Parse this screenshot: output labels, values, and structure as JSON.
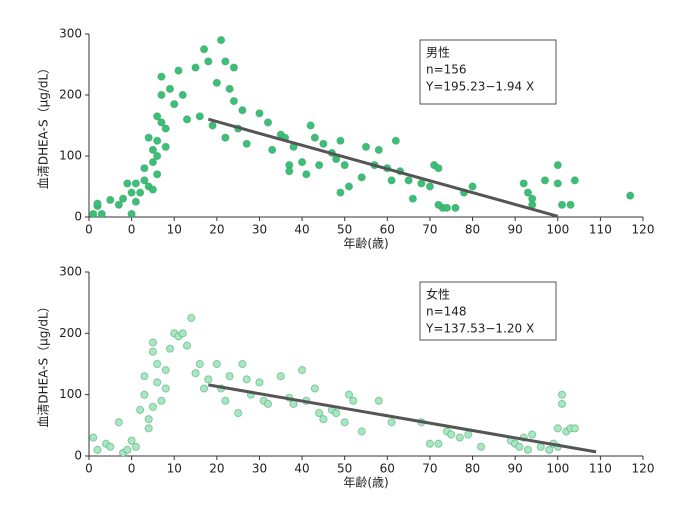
{
  "chart_data": [
    {
      "type": "scatter",
      "ylabel": "血清DHEA-S（μg/dL）",
      "xlabel": "年齢(歳)",
      "annotations": [
        "男性",
        "n=156",
        "Y=195.23−1.94 X"
      ],
      "xlim": [
        -10,
        120
      ],
      "ylim": [
        0,
        300
      ],
      "xticks": [
        {
          "value": -10,
          "label": "0"
        },
        0,
        10,
        20,
        30,
        40,
        50,
        60,
        70,
        80,
        90,
        100,
        110,
        120
      ],
      "yticks": [
        0,
        100,
        200,
        300
      ],
      "color": "#3dbf78",
      "x": [
        -9,
        -8,
        -8,
        -7,
        -5,
        -3,
        -2,
        -1,
        0,
        0,
        1,
        1,
        2,
        3,
        3,
        4,
        4,
        5,
        5,
        5,
        6,
        6,
        6,
        6,
        7,
        7,
        7,
        8,
        8,
        9,
        10,
        11,
        12,
        13,
        15,
        16,
        17,
        18,
        19,
        20,
        21,
        22,
        23,
        24,
        22,
        24,
        25,
        26,
        27,
        30,
        32,
        33,
        35,
        36,
        37,
        37,
        38,
        40,
        42,
        41,
        43,
        44,
        45,
        47,
        48,
        49,
        49,
        50,
        51,
        54,
        55,
        57,
        58,
        60,
        61,
        62,
        63,
        65,
        66,
        68,
        70,
        71,
        72,
        73,
        72,
        74,
        76,
        78,
        80,
        92,
        93,
        94,
        94,
        97,
        100,
        100,
        101,
        103,
        104,
        117
      ],
      "values": [
        5,
        18,
        22,
        5,
        28,
        20,
        30,
        55,
        40,
        5,
        25,
        55,
        40,
        60,
        80,
        50,
        130,
        90,
        110,
        45,
        70,
        100,
        125,
        165,
        155,
        200,
        230,
        145,
        115,
        210,
        185,
        240,
        200,
        160,
        245,
        165,
        275,
        255,
        150,
        220,
        290,
        255,
        210,
        245,
        130,
        190,
        145,
        175,
        120,
        170,
        155,
        110,
        135,
        130,
        85,
        75,
        115,
        90,
        150,
        70,
        130,
        85,
        120,
        105,
        95,
        125,
        40,
        85,
        50,
        65,
        115,
        85,
        110,
        80,
        60,
        125,
        75,
        60,
        30,
        55,
        50,
        85,
        80,
        15,
        20,
        15,
        15,
        40,
        50,
        55,
        40,
        20,
        30,
        60,
        85,
        55,
        20,
        20,
        60,
        35
      ],
      "fit": {
        "x": [
          18,
          100
        ],
        "values": [
          160.3,
          1.2
        ],
        "color": "#555555"
      }
    },
    {
      "type": "scatter",
      "ylabel": "血清DHEA-S（μg/dL）",
      "xlabel": "年齢(歳)",
      "annotations": [
        "女性",
        "n=148",
        "Y=137.53−1.20 X"
      ],
      "xlim": [
        -10,
        120
      ],
      "ylim": [
        0,
        300
      ],
      "xticks": [
        {
          "value": -10,
          "label": "0"
        },
        0,
        10,
        20,
        30,
        40,
        50,
        60,
        70,
        80,
        90,
        100,
        110,
        120
      ],
      "yticks": [
        0,
        100,
        200,
        300
      ],
      "color": "#a9e6c2",
      "x": [
        -9,
        -8,
        -6,
        -5,
        -3,
        -2,
        -1,
        0,
        1,
        2,
        3,
        3,
        4,
        4,
        5,
        5,
        5,
        6,
        6,
        7,
        8,
        8,
        9,
        10,
        11,
        12,
        13,
        14,
        15,
        16,
        17,
        18,
        20,
        21,
        22,
        23,
        25,
        26,
        27,
        28,
        30,
        31,
        32,
        35,
        37,
        38,
        40,
        41,
        43,
        44,
        45,
        47,
        48,
        50,
        51,
        52,
        54,
        58,
        61,
        68,
        70,
        72,
        74,
        75,
        77,
        79,
        82,
        89,
        90,
        91,
        92,
        93,
        94,
        96,
        98,
        99,
        100,
        100,
        101,
        101,
        102,
        103,
        104
      ],
      "values": [
        30,
        10,
        20,
        15,
        55,
        5,
        10,
        25,
        15,
        75,
        130,
        100,
        60,
        45,
        185,
        170,
        80,
        150,
        120,
        90,
        140,
        110,
        175,
        200,
        195,
        200,
        180,
        225,
        135,
        150,
        110,
        125,
        150,
        110,
        90,
        130,
        70,
        150,
        125,
        100,
        120,
        90,
        85,
        130,
        95,
        85,
        140,
        90,
        110,
        70,
        60,
        75,
        70,
        55,
        100,
        90,
        40,
        90,
        55,
        55,
        20,
        20,
        40,
        35,
        30,
        35,
        15,
        25,
        20,
        15,
        30,
        10,
        35,
        15,
        10,
        20,
        15,
        45,
        100,
        85,
        40,
        45,
        45
      ],
      "fit": {
        "x": [
          18,
          109
        ],
        "values": [
          116,
          6.7
        ],
        "color": "#555555"
      }
    }
  ]
}
